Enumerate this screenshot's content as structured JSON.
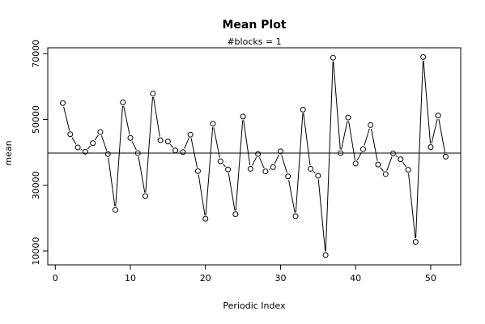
{
  "chart_data": {
    "type": "line",
    "title": "Mean Plot",
    "subtitle": "#blocks =  1",
    "xlabel": "Periodic Index",
    "ylabel": "mean",
    "xlim": [
      -1,
      54
    ],
    "ylim": [
      5800,
      71800
    ],
    "x_ticks": [
      0,
      10,
      20,
      30,
      40,
      50
    ],
    "y_ticks": [
      10000,
      30000,
      50000,
      70000
    ],
    "reference_line": 39800,
    "x": [
      1,
      2,
      3,
      4,
      5,
      6,
      7,
      8,
      9,
      10,
      11,
      12,
      13,
      14,
      15,
      16,
      17,
      18,
      19,
      20,
      21,
      22,
      23,
      24,
      25,
      26,
      27,
      28,
      29,
      30,
      31,
      32,
      33,
      34,
      35,
      36,
      37,
      38,
      39,
      40,
      41,
      42,
      43,
      44,
      45,
      46,
      47,
      48,
      49,
      50,
      51,
      52
    ],
    "values": [
      55000,
      45500,
      41500,
      40200,
      42800,
      46200,
      39500,
      22500,
      55200,
      44400,
      39800,
      26700,
      57900,
      43700,
      43300,
      40600,
      40100,
      45400,
      34300,
      19800,
      48700,
      37300,
      34800,
      21200,
      50900,
      35000,
      39500,
      34200,
      35500,
      40300,
      32700,
      20600,
      53000,
      35000,
      32900,
      8800,
      68800,
      39800,
      50600,
      36600,
      41000,
      48300,
      36300,
      33400,
      39700,
      37900,
      34700,
      12800,
      69000,
      41600,
      51200,
      38700
    ]
  }
}
